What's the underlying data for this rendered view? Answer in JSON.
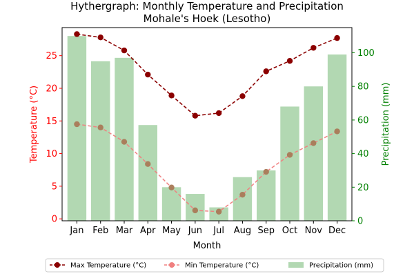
{
  "chart_data": {
    "type": "bar+line",
    "title": "Hythergraph: Monthly Temperature and Precipitation",
    "subtitle": "Mohale's Hoek (Lesotho)",
    "xlabel": "Month",
    "ylabel_left": "Temperature (°C)",
    "ylabel_right": "Precipitation (mm)",
    "categories": [
      "Jan",
      "Feb",
      "Mar",
      "Apr",
      "May",
      "Jun",
      "Jul",
      "Aug",
      "Sep",
      "Oct",
      "Nov",
      "Dec"
    ],
    "y_left_lim": [
      -0.3,
      29.3
    ],
    "y_left_ticks": [
      0,
      5,
      10,
      15,
      20,
      25
    ],
    "y_right_lim": [
      0,
      115
    ],
    "y_right_ticks": [
      0,
      20,
      40,
      60,
      80,
      100
    ],
    "series": [
      {
        "name": "Max Temperature (°C)",
        "kind": "line",
        "axis": "left",
        "color": "#8b0000",
        "style": "dashed",
        "marker": "circle",
        "values": [
          28.3,
          27.8,
          25.8,
          22.1,
          18.9,
          15.8,
          16.2,
          18.8,
          22.6,
          24.2,
          26.2,
          27.7
        ]
      },
      {
        "name": "Min Temperature (°C)",
        "kind": "line",
        "axis": "left",
        "color": "#f08080",
        "style": "dashed",
        "marker": "circle",
        "values": [
          14.5,
          14.0,
          11.8,
          8.4,
          4.8,
          1.3,
          1.1,
          3.7,
          7.2,
          9.8,
          11.6,
          13.4
        ]
      },
      {
        "name": "Precipitation (mm)",
        "kind": "bar",
        "axis": "right",
        "color": "#b2d8b2",
        "values": [
          110,
          95,
          97,
          57,
          20,
          16,
          8,
          26,
          30,
          68,
          80,
          99
        ]
      }
    ],
    "legend_position": "bottom",
    "left_axis_color": "#ff0000",
    "right_axis_color": "#008000"
  }
}
